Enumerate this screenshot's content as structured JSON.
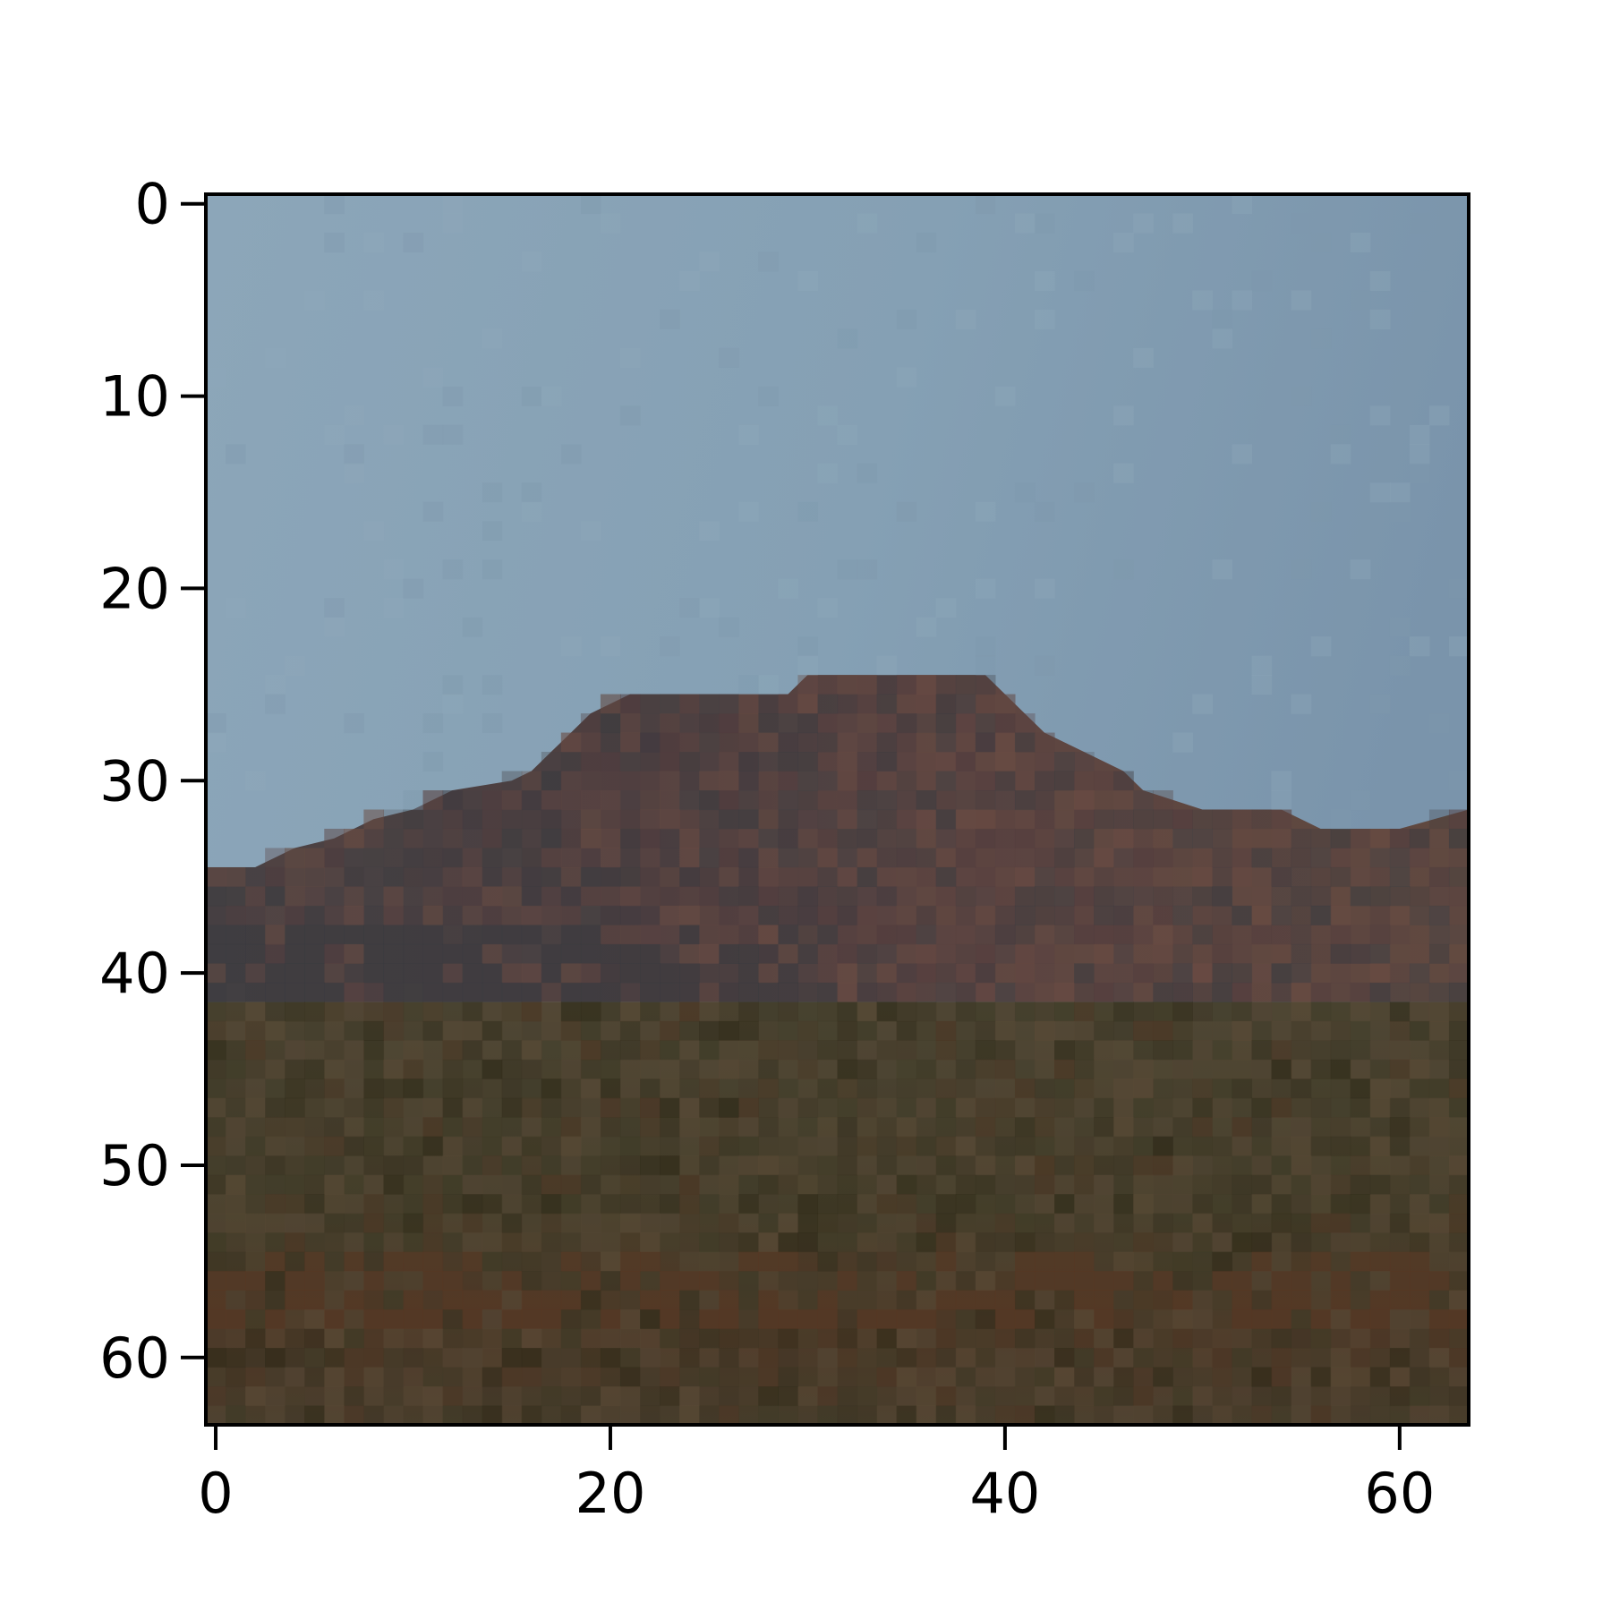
{
  "chart_data": {
    "type": "heatmap",
    "description_of_content": "",
    "x_ticks": [
      "0",
      "20",
      "40",
      "60"
    ],
    "y_ticks": [
      "0",
      "10",
      "20",
      "30",
      "40",
      "50",
      "60"
    ],
    "xlim": [
      -0.5,
      63.5
    ],
    "ylim": [
      63.5,
      -0.5
    ],
    "grid": false,
    "colors": {
      "sky_top_left": "#8ca6b9",
      "sky_top_right": "#7c97ad",
      "sky_horizon": "#8da7b3",
      "hill_dark": "#473b40",
      "hill_red": "#6a4a42",
      "hill_shadow": "#3b3d40",
      "field": "#4a3f2e",
      "field_red": "#563324",
      "field_dark": "#2e2a1a",
      "axis": "#000000"
    }
  }
}
